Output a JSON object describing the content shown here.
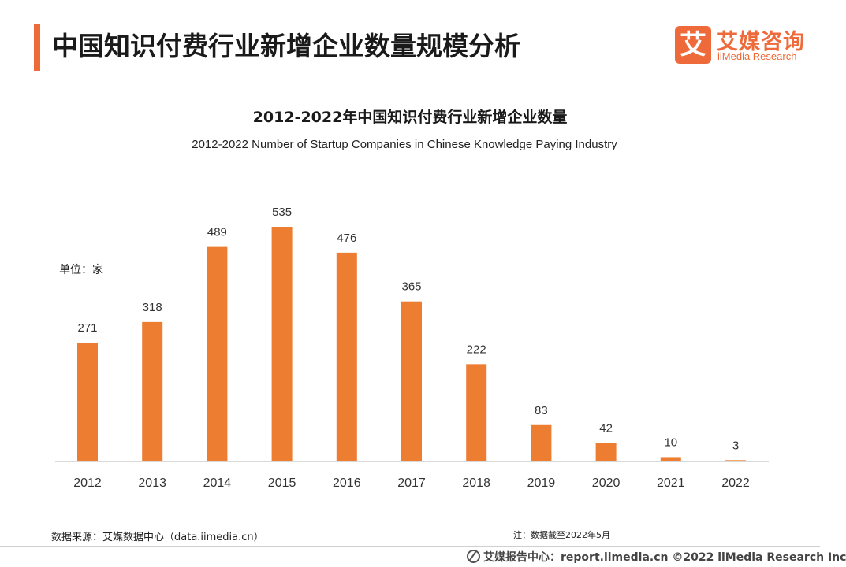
{
  "header": {
    "title": "中国知识付费行业新增企业数量规模分析",
    "accent_color": "#ef6a3a"
  },
  "logo": {
    "mark": "艾",
    "name_cn": "艾媒咨询",
    "name_en": "iiMedia Research"
  },
  "chart_data": {
    "type": "bar",
    "title": "2012-2022年中国知识付费行业新增企业数量",
    "subtitle": "2012-2022 Number of Startup Companies in Chinese Knowledge Paying Industry",
    "unit_label": "单位：家",
    "categories": [
      "2012",
      "2013",
      "2014",
      "2015",
      "2016",
      "2017",
      "2018",
      "2019",
      "2020",
      "2021",
      "2022"
    ],
    "values": [
      271,
      318,
      489,
      535,
      476,
      365,
      222,
      83,
      42,
      10,
      3
    ],
    "xlabel": "",
    "ylabel": "",
    "ylim": [
      0,
      535
    ],
    "grid": false,
    "legend": "none",
    "bar_color": "#ed7d31",
    "axis_color": "#d9d9d9"
  },
  "notes": {
    "source": "数据来源：艾媒数据中心（data.iimedia.cn）",
    "date_note": "注：数据截至2022年5月"
  },
  "footer": {
    "text": "艾媒报告中心：report.iimedia.cn   ©2022  iiMedia Research  Inc"
  }
}
